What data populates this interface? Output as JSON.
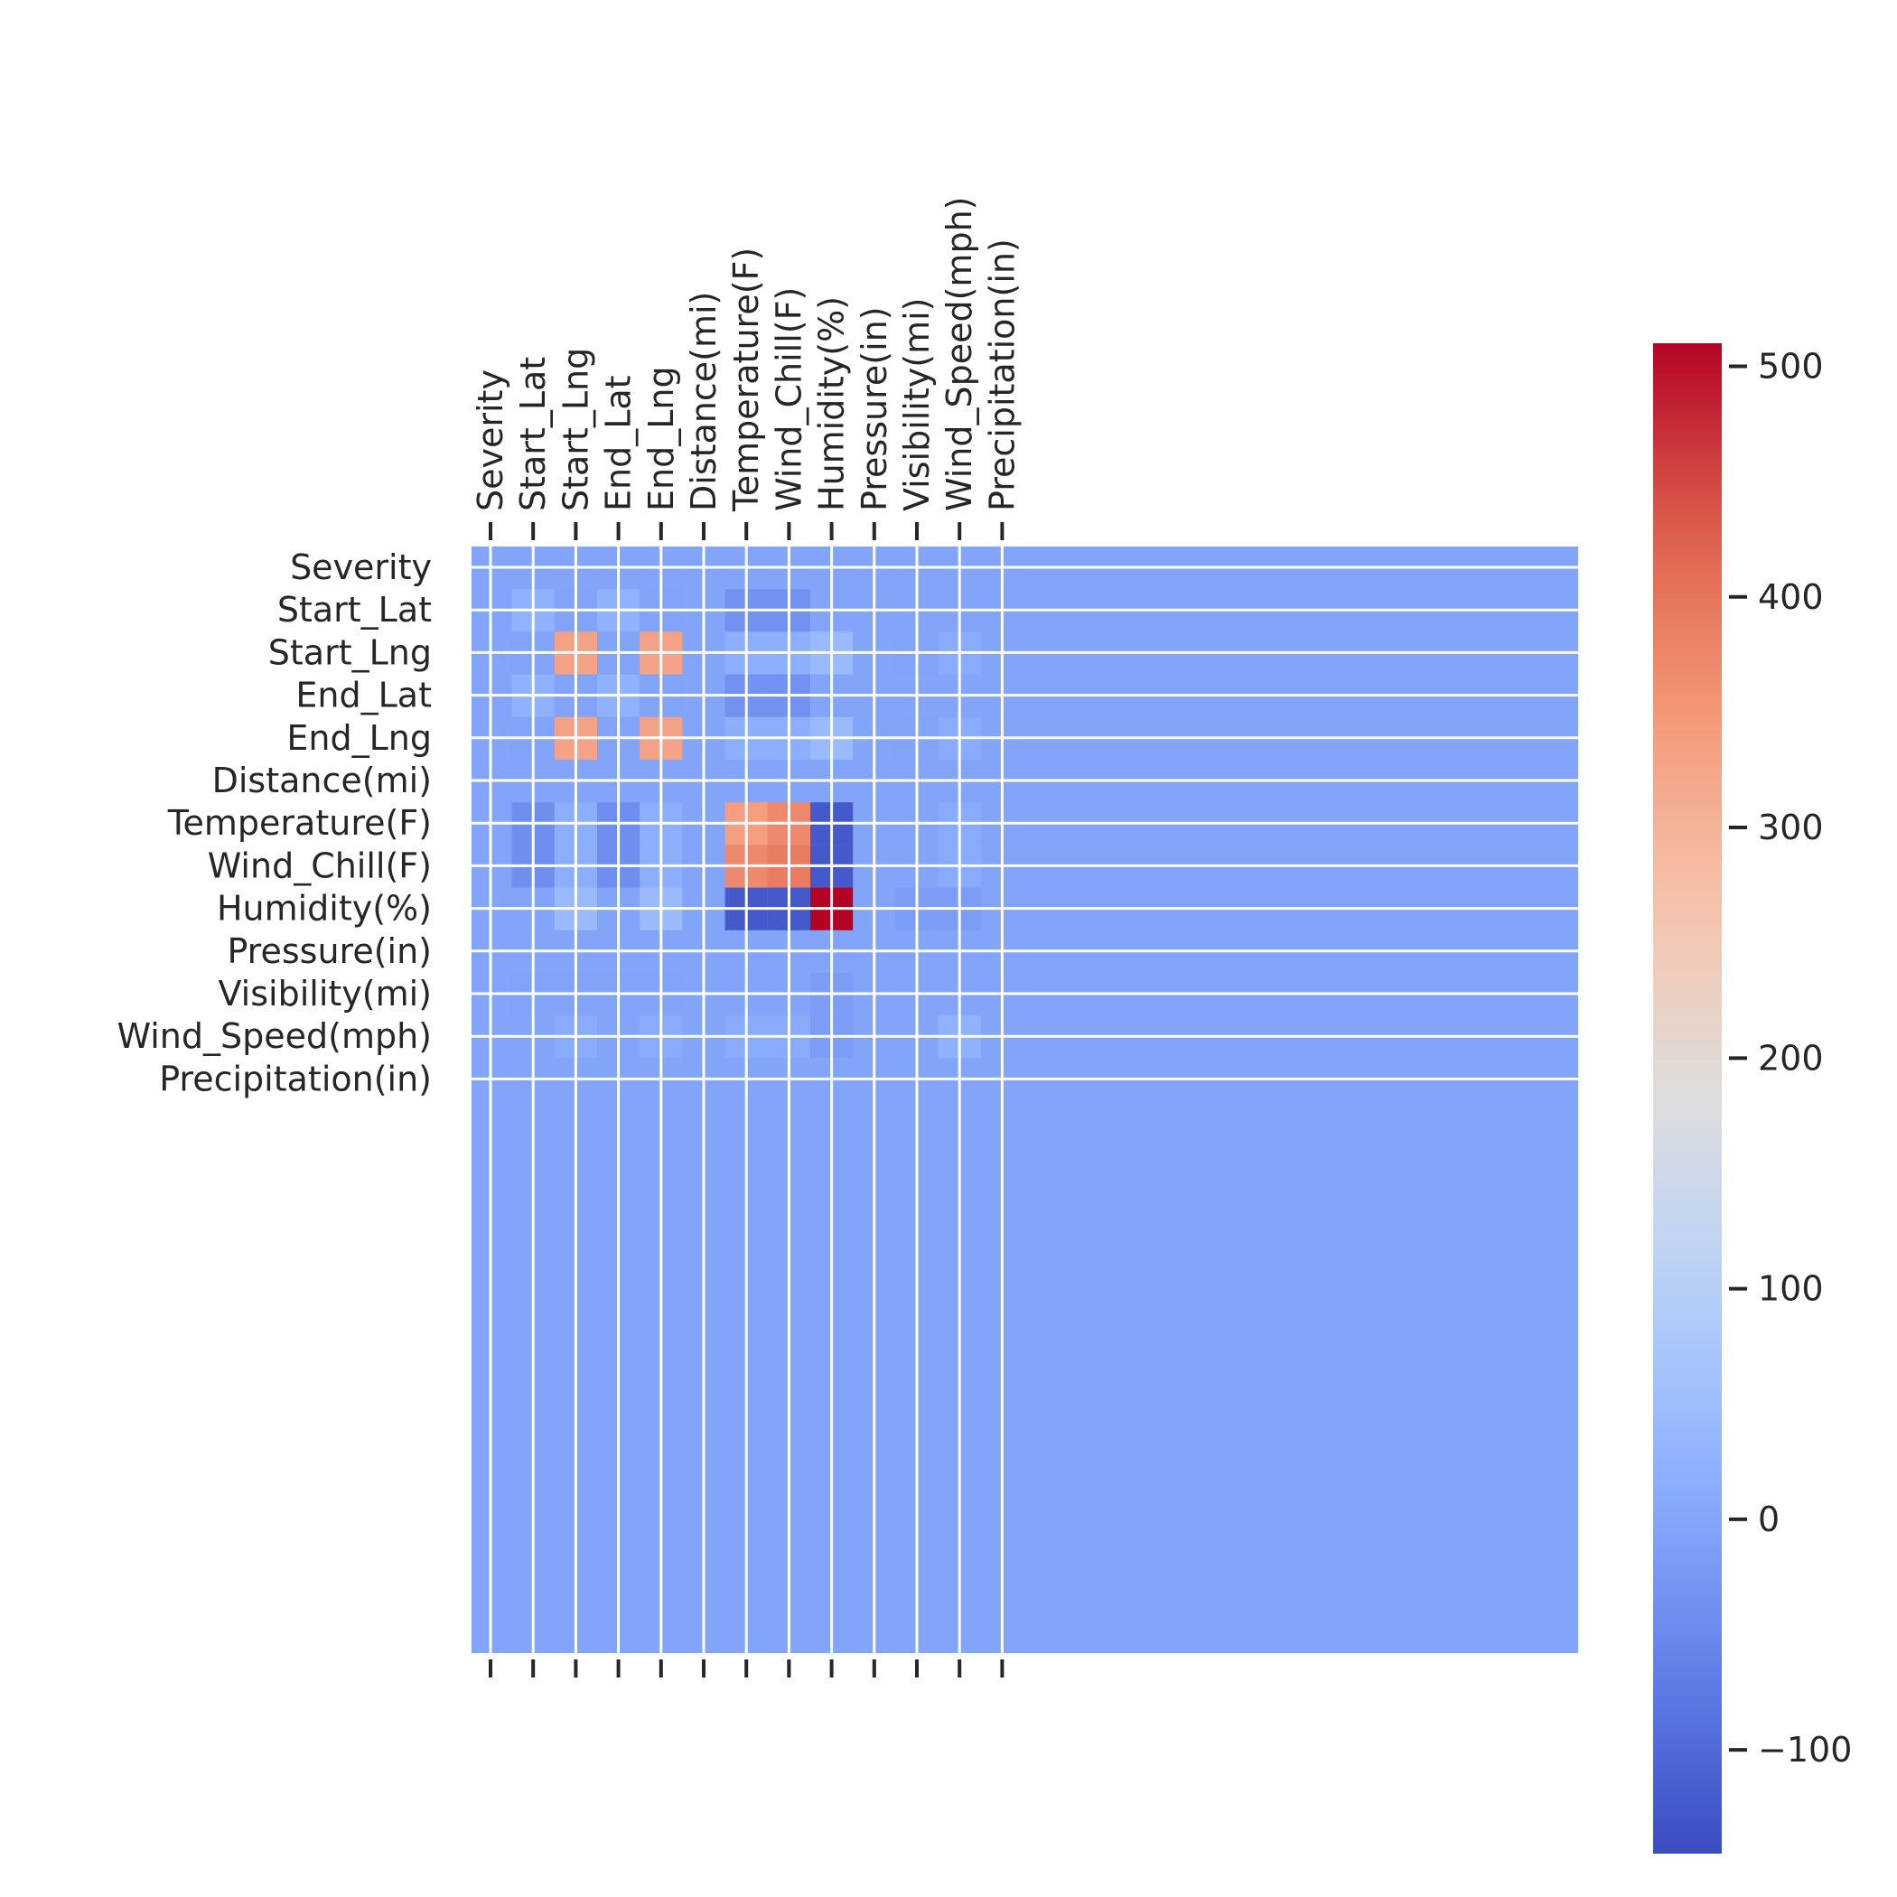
{
  "chart_data": {
    "type": "heatmap",
    "title": "",
    "xlabel": "",
    "ylabel": "",
    "variables": [
      "Severity",
      "Start_Lat",
      "Start_Lng",
      "End_Lat",
      "End_Lng",
      "Distance(mi)",
      "Temperature(F)",
      "Wind_Chill(F)",
      "Humidity(%)",
      "Pressure(in)",
      "Visibility(mi)",
      "Wind_Speed(mph)",
      "Precipitation(in)"
    ],
    "x_tick_labels": [
      "Severity",
      "Start_Lat",
      "Start_Lng",
      "End_Lat",
      "End_Lng",
      "Distance(mi)",
      "Temperature(F)",
      "Wind_Chill(F)",
      "Humidity(%)",
      "Pressure(in)",
      "Visibility(mi)",
      "Wind_Speed(mph)",
      "Precipitation(in)"
    ],
    "y_tick_labels": [
      "Severity",
      "Start_Lat",
      "Start_Lng",
      "End_Lat",
      "End_Lng",
      "Distance(mi)",
      "Temperature(F)",
      "Wind_Chill(F)",
      "Humidity(%)",
      "Pressure(in)",
      "Visibility(mi)",
      "Wind_Speed(mph)",
      "Precipitation(in)"
    ],
    "x_axis_position": "top",
    "grid": true,
    "colormap": "coolwarm",
    "colorbar": {
      "vmin": -145,
      "vmax": 510,
      "ticks": [
        -100,
        0,
        100,
        200,
        300,
        400,
        500
      ],
      "tick_labels": [
        "−100",
        "0",
        "100",
        "200",
        "300",
        "400",
        "500"
      ],
      "placement": "right"
    },
    "values": [
      [
        0,
        0,
        0,
        0,
        0,
        0,
        0,
        0,
        0,
        0,
        0,
        0,
        0
      ],
      [
        0,
        25,
        -5,
        25,
        -5,
        0,
        -35,
        -35,
        0,
        0,
        0,
        0,
        0
      ],
      [
        0,
        -5,
        330,
        -5,
        330,
        0,
        15,
        15,
        45,
        0,
        -5,
        10,
        0
      ],
      [
        0,
        25,
        -5,
        25,
        -5,
        0,
        -35,
        -35,
        0,
        0,
        0,
        0,
        0
      ],
      [
        0,
        -5,
        330,
        -5,
        330,
        0,
        15,
        15,
        45,
        0,
        -5,
        10,
        0
      ],
      [
        0,
        0,
        0,
        0,
        0,
        0,
        0,
        0,
        0,
        0,
        0,
        0,
        0
      ],
      [
        0,
        -40,
        15,
        -40,
        15,
        0,
        340,
        370,
        -125,
        0,
        0,
        10,
        0
      ],
      [
        0,
        -40,
        15,
        -40,
        15,
        0,
        370,
        390,
        -125,
        0,
        0,
        10,
        0
      ],
      [
        0,
        0,
        45,
        0,
        45,
        0,
        -125,
        -125,
        510,
        0,
        -15,
        -15,
        0
      ],
      [
        0,
        0,
        0,
        0,
        0,
        0,
        0,
        0,
        0,
        0,
        0,
        0,
        0
      ],
      [
        0,
        -5,
        -5,
        -5,
        -5,
        0,
        0,
        0,
        -15,
        0,
        0,
        0,
        0
      ],
      [
        0,
        0,
        10,
        0,
        10,
        0,
        10,
        10,
        -15,
        0,
        0,
        25,
        0
      ],
      [
        0,
        0,
        0,
        0,
        0,
        0,
        0,
        0,
        0,
        0,
        0,
        0,
        0
      ]
    ],
    "background_value": 0
  }
}
